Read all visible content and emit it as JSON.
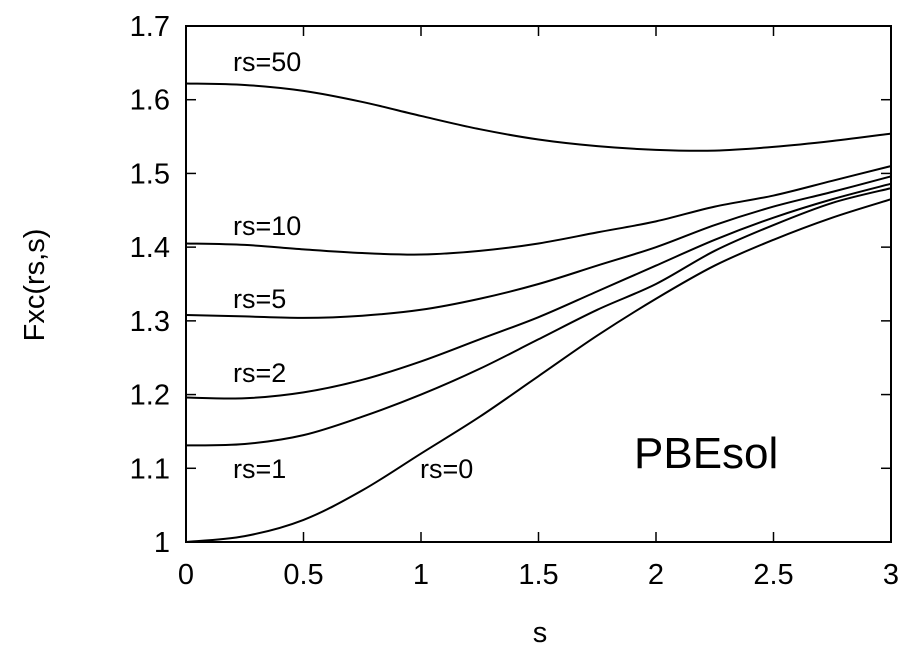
{
  "chart_data": {
    "type": "line",
    "title": "",
    "xlabel": "s",
    "ylabel": "Fxc(rs,s)",
    "xlim": [
      0,
      3
    ],
    "ylim": [
      1,
      1.7
    ],
    "xticks": [
      "0",
      "0.5",
      "1",
      "1.5",
      "2",
      "2.5",
      "3"
    ],
    "yticks": [
      "1",
      "1.1",
      "1.2",
      "1.3",
      "1.4",
      "1.5",
      "1.6",
      "1.7"
    ],
    "grid": false,
    "legend": "none",
    "annotation": "PBEsol",
    "x": [
      0,
      0.25,
      0.5,
      0.75,
      1.0,
      1.25,
      1.5,
      1.75,
      2.0,
      2.25,
      2.5,
      2.75,
      3.0
    ],
    "series": [
      {
        "name": "rs=0",
        "values": [
          1.0,
          1.008,
          1.03,
          1.07,
          1.12,
          1.17,
          1.225,
          1.28,
          1.33,
          1.375,
          1.41,
          1.44,
          1.465
        ]
      },
      {
        "name": "rs=1",
        "values": [
          1.131,
          1.133,
          1.145,
          1.17,
          1.2,
          1.235,
          1.275,
          1.315,
          1.35,
          1.395,
          1.43,
          1.46,
          1.48
        ]
      },
      {
        "name": "rs=2",
        "values": [
          1.196,
          1.195,
          1.203,
          1.22,
          1.245,
          1.275,
          1.305,
          1.34,
          1.375,
          1.41,
          1.44,
          1.465,
          1.486
        ]
      },
      {
        "name": "rs=5",
        "values": [
          1.308,
          1.306,
          1.304,
          1.307,
          1.315,
          1.33,
          1.35,
          1.375,
          1.4,
          1.43,
          1.455,
          1.475,
          1.496
        ]
      },
      {
        "name": "rs=10",
        "values": [
          1.405,
          1.403,
          1.397,
          1.392,
          1.39,
          1.395,
          1.405,
          1.42,
          1.435,
          1.455,
          1.47,
          1.49,
          1.51
        ]
      },
      {
        "name": "rs=50",
        "values": [
          1.622,
          1.62,
          1.612,
          1.597,
          1.578,
          1.56,
          1.546,
          1.537,
          1.532,
          1.531,
          1.536,
          1.544,
          1.554
        ]
      }
    ],
    "curve_labels": [
      "rs=50",
      "rs=10",
      "rs=5",
      "rs=2",
      "rs=1",
      "rs=0"
    ]
  }
}
